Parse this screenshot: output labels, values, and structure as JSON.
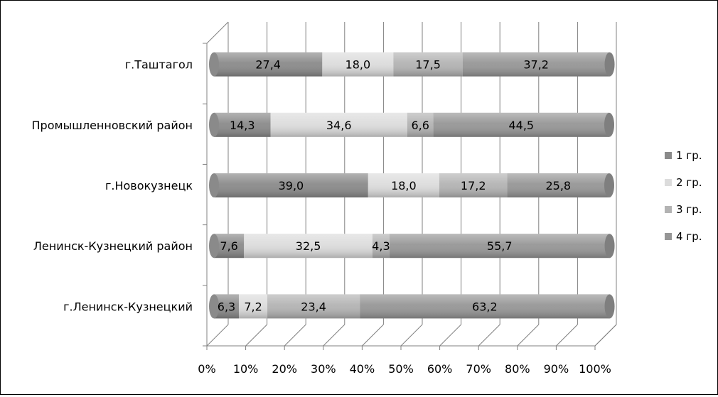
{
  "chart_data": {
    "type": "bar",
    "orientation": "horizontal",
    "stacking": "percent",
    "style": "3d-cylinder",
    "categories": [
      "г.Таштагол",
      "Промышленновский район",
      "г.Новокузнецк",
      "Ленинск-Кузнецкий район",
      "г.Ленинск-Кузнецкий"
    ],
    "series": [
      {
        "name": "1 гр.",
        "values": [
          "27,4",
          "14,3",
          "39,0",
          "7,6",
          "6,3"
        ]
      },
      {
        "name": "2 гр.",
        "values": [
          "18,0",
          "34,6",
          "18,0",
          "32,5",
          "7,2"
        ]
      },
      {
        "name": "3 гр.",
        "values": [
          "17,5",
          "6,6",
          "17,2",
          "4,3",
          "23,4"
        ]
      },
      {
        "name": "4 гр.",
        "values": [
          "37,2",
          "44,5",
          "25,8",
          "55,7",
          "63,2"
        ]
      }
    ],
    "x_ticks": [
      "0%",
      "10%",
      "20%",
      "30%",
      "40%",
      "50%",
      "60%",
      "70%",
      "80%",
      "90%",
      "100%"
    ],
    "xlim": [
      0,
      100
    ],
    "grid": true,
    "legend": "right",
    "colors": [
      "#8a8a8a",
      "#dcdcdc",
      "#b3b3b3",
      "#969696"
    ],
    "title": "",
    "xlabel": "",
    "ylabel": ""
  }
}
